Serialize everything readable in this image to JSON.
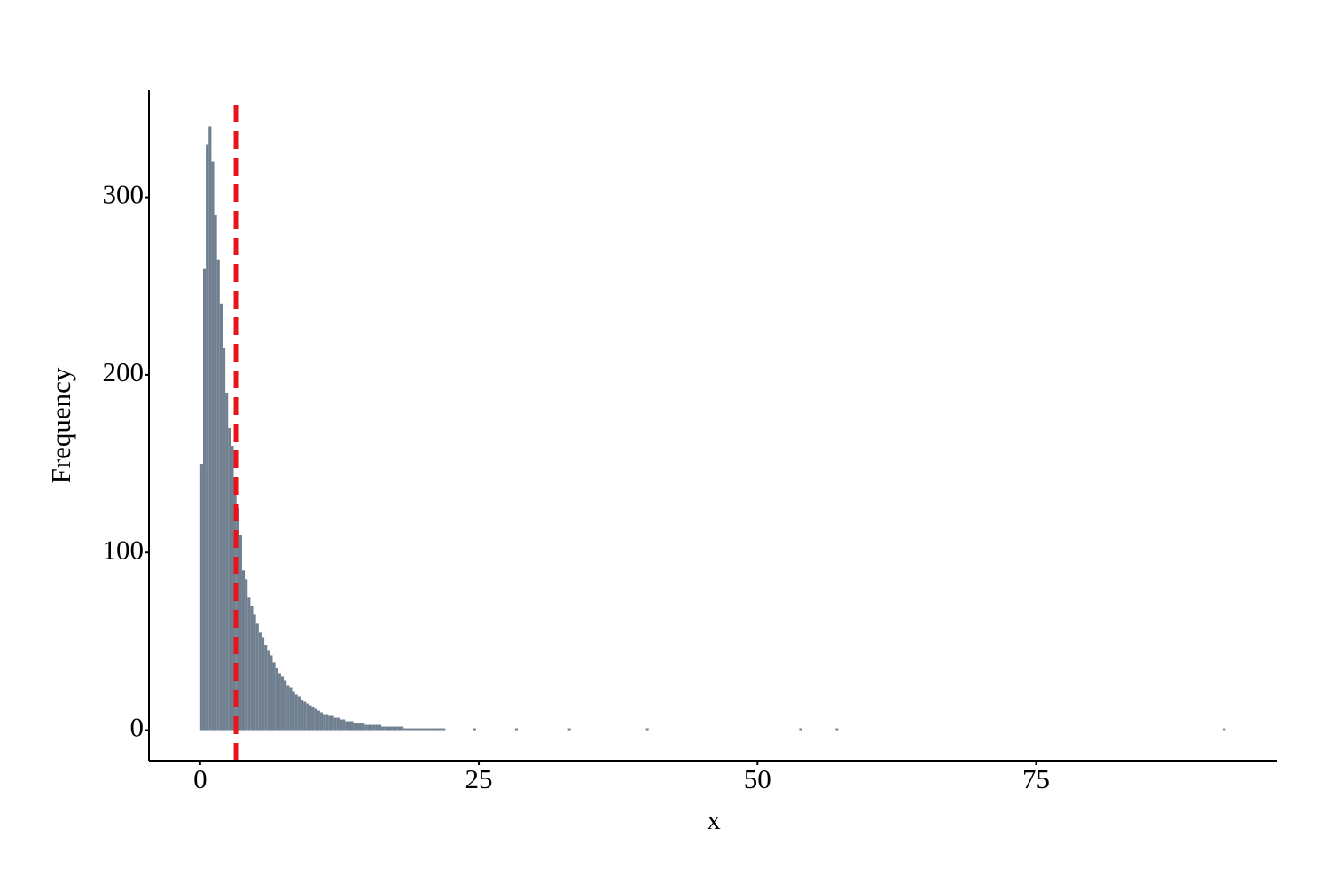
{
  "chart_data": {
    "type": "histogram",
    "x_label": "x",
    "y_label": "Frequency",
    "bins": [
      0,
      0.25,
      0.5,
      0.75,
      1,
      1.25,
      1.5,
      1.75,
      2,
      2.25,
      2.5,
      2.75,
      3,
      3.25,
      3.5,
      3.75,
      4,
      4.25,
      4.5,
      4.75,
      5,
      5.25,
      5.5,
      5.75,
      6,
      6.25,
      6.5,
      6.75,
      7,
      7.25,
      7.5,
      7.75,
      8,
      8.25,
      8.5,
      8.75,
      9,
      9.25,
      9.5,
      9.75,
      10,
      10.25,
      10.5,
      10.75,
      11,
      11.25,
      11.5,
      11.75,
      12,
      12.25,
      12.5,
      12.75,
      13,
      13.25,
      13.5,
      13.75,
      14,
      14.25,
      14.5,
      14.75,
      15,
      15.25,
      15.5,
      15.75,
      16,
      16.25,
      16.5,
      16.75,
      17,
      17.25,
      17.5,
      17.75,
      18,
      18.25,
      18.5,
      18.75,
      19,
      19.25,
      19.5,
      19.75,
      20,
      20.25,
      20.5,
      20.75,
      21,
      21.25,
      21.5,
      21.75,
      22,
      24.5,
      24.75,
      28.25,
      28.5,
      33,
      33.25,
      40,
      40.25,
      53.75,
      54,
      57,
      57.25,
      91.75,
      92
    ],
    "counts": [
      150,
      260,
      330,
      340,
      320,
      290,
      265,
      240,
      215,
      190,
      170,
      160,
      140,
      125,
      110,
      90,
      85,
      75,
      70,
      65,
      60,
      55,
      52,
      48,
      45,
      42,
      38,
      35,
      32,
      30,
      28,
      25,
      24,
      22,
      20,
      19,
      17,
      16,
      15,
      14,
      13,
      12,
      11,
      10,
      9,
      9,
      8,
      8,
      7,
      7,
      6,
      6,
      5,
      5,
      5,
      4,
      4,
      4,
      4,
      3,
      3,
      3,
      3,
      3,
      3,
      2,
      2,
      2,
      2,
      2,
      2,
      2,
      2,
      1,
      1,
      1,
      1,
      1,
      1,
      1,
      1,
      1,
      1,
      1,
      1,
      1,
      1,
      1,
      0,
      1,
      0,
      1,
      0,
      1,
      0,
      1,
      0,
      1,
      0,
      1,
      0,
      1
    ],
    "color": "#708090",
    "mean_line": 3.2,
    "mean_line_color": "#e8141c",
    "xlim": [
      -4.6,
      96.6
    ],
    "xticks": [
      0,
      25,
      50,
      75
    ],
    "ylim": [
      -17.2,
      360.2
    ],
    "yticks": [
      0,
      100,
      200,
      300
    ]
  }
}
